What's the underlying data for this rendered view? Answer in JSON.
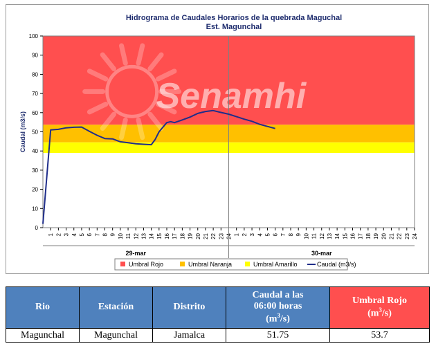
{
  "chart_data": {
    "type": "line",
    "title": "Hidrograma de Caudales Horarios de la quebrada Maguchal",
    "subtitle": "Est. Magunchal",
    "ylabel": "Caudal (m3/s)",
    "ylim": [
      0,
      100
    ],
    "y_ticks": [
      "0",
      "10",
      "20",
      "30",
      "40",
      "50",
      "60",
      "70",
      "80",
      "90",
      "100"
    ],
    "x_ticks": [
      "1",
      "2",
      "3",
      "4",
      "5",
      "6",
      "7",
      "8",
      "9",
      "10",
      "11",
      "12",
      "13",
      "14",
      "15",
      "16",
      "17",
      "18",
      "19",
      "20",
      "21",
      "22",
      "23",
      "24"
    ],
    "days": [
      "29-mar",
      "30-mar"
    ],
    "thresholds": {
      "rojo": 53.7,
      "naranja": 44.5,
      "amarillo": 39
    },
    "colors": {
      "rojo": "#ff4f4f",
      "naranja": "#ffc000",
      "amarillo": "#ffff00",
      "caudal": "#1f2d8a"
    },
    "legend": [
      "Umbral Rojo",
      "Umbral Naranja",
      "Umbral Amarillo",
      "Caudal (m3/s)"
    ],
    "watermark": "Senamhi",
    "series": [
      {
        "name": "Caudal (m3/s)",
        "x": [
          0,
          1,
          2,
          3,
          4,
          5,
          6,
          7,
          8,
          9,
          10,
          11,
          12,
          13,
          14,
          14.5,
          15,
          16,
          16.5,
          17,
          18,
          19,
          20,
          21,
          22,
          23,
          24,
          25,
          26,
          27,
          28,
          29,
          30
        ],
        "values": [
          2,
          51,
          51.3,
          52.1,
          52.4,
          52.5,
          50.3,
          48.2,
          46.5,
          46.3,
          44.8,
          44.3,
          43.8,
          43.5,
          43.3,
          46,
          50,
          54.8,
          55.3,
          54.8,
          56.2,
          57.7,
          59.6,
          60.6,
          61.1,
          60.1,
          59.2,
          57.9,
          56.6,
          55.5,
          53.9,
          52.8,
          51.75
        ]
      }
    ]
  },
  "table": {
    "headers": {
      "rio": "Rio",
      "estacion": "Estación",
      "distrito": "Distrito",
      "caudal_line1": "Caudal a las",
      "caudal_line2": "06:00 horas",
      "caudal_unit_base": "(m",
      "caudal_unit_sup": "3",
      "caudal_unit_end": "/s)",
      "umbral_line1": "Umbral Rojo",
      "umbral_unit_base": "(m",
      "umbral_unit_sup": "3",
      "umbral_unit_end": "/s)"
    },
    "row": {
      "rio": "Magunchal",
      "estacion": "Magunchal",
      "distrito": "Jamalca",
      "caudal": "51.75",
      "umbral": "53.7"
    }
  }
}
